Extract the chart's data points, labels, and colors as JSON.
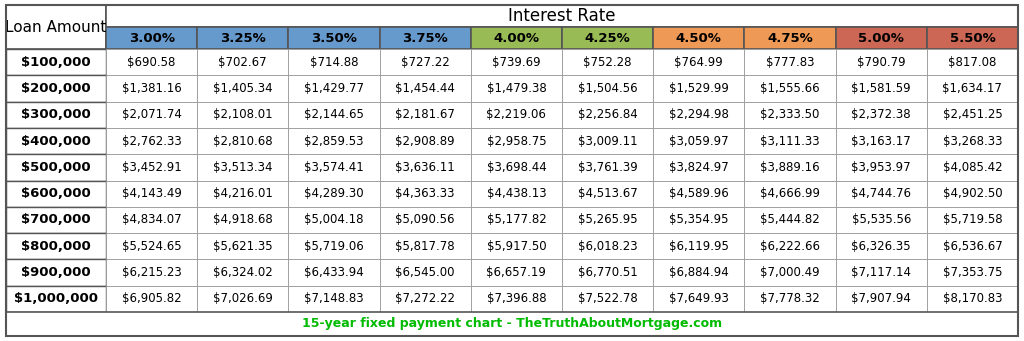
{
  "title": "Interest Rate",
  "footer": "15-year fixed payment chart - TheTruthAboutMortgage.com",
  "footer_color": "#00bb00",
  "col_header": [
    "3.00%",
    "3.25%",
    "3.50%",
    "3.75%",
    "4.00%",
    "4.25%",
    "4.50%",
    "4.75%",
    "5.00%",
    "5.50%"
  ],
  "col_header_colors": [
    "#6699cc",
    "#6699cc",
    "#6699cc",
    "#6699cc",
    "#99bb55",
    "#99bb55",
    "#ee9955",
    "#ee9955",
    "#cc6655",
    "#cc6655"
  ],
  "row_labels": [
    "$100,000",
    "$200,000",
    "$300,000",
    "$400,000",
    "$500,000",
    "$600,000",
    "$700,000",
    "$800,000",
    "$900,000",
    "$1,000,000"
  ],
  "data": [
    [
      "$690.58",
      "$702.67",
      "$714.88",
      "$727.22",
      "$739.69",
      "$752.28",
      "$764.99",
      "$777.83",
      "$790.79",
      "$817.08"
    ],
    [
      "$1,381.16",
      "$1,405.34",
      "$1,429.77",
      "$1,454.44",
      "$1,479.38",
      "$1,504.56",
      "$1,529.99",
      "$1,555.66",
      "$1,581.59",
      "$1,634.17"
    ],
    [
      "$2,071.74",
      "$2,108.01",
      "$2,144.65",
      "$2,181.67",
      "$2,219.06",
      "$2,256.84",
      "$2,294.98",
      "$2,333.50",
      "$2,372.38",
      "$2,451.25"
    ],
    [
      "$2,762.33",
      "$2,810.68",
      "$2,859.53",
      "$2,908.89",
      "$2,958.75",
      "$3,009.11",
      "$3,059.97",
      "$3,111.33",
      "$3,163.17",
      "$3,268.33"
    ],
    [
      "$3,452.91",
      "$3,513.34",
      "$3,574.41",
      "$3,636.11",
      "$3,698.44",
      "$3,761.39",
      "$3,824.97",
      "$3,889.16",
      "$3,953.97",
      "$4,085.42"
    ],
    [
      "$4,143.49",
      "$4,216.01",
      "$4,289.30",
      "$4,363.33",
      "$4,438.13",
      "$4,513.67",
      "$4,589.96",
      "$4,666.99",
      "$4,744.76",
      "$4,902.50"
    ],
    [
      "$4,834.07",
      "$4,918.68",
      "$5,004.18",
      "$5,090.56",
      "$5,177.82",
      "$5,265.95",
      "$5,354.95",
      "$5,444.82",
      "$5,535.56",
      "$5,719.58"
    ],
    [
      "$5,524.65",
      "$5,621.35",
      "$5,719.06",
      "$5,817.78",
      "$5,917.50",
      "$6,018.23",
      "$6,119.95",
      "$6,222.66",
      "$6,326.35",
      "$6,536.67"
    ],
    [
      "$6,215.23",
      "$6,324.02",
      "$6,433.94",
      "$6,545.00",
      "$6,657.19",
      "$6,770.51",
      "$6,884.94",
      "$7,000.49",
      "$7,117.14",
      "$7,353.75"
    ],
    [
      "$6,905.82",
      "$7,026.69",
      "$7,148.83",
      "$7,272.22",
      "$7,396.88",
      "$7,522.78",
      "$7,649.93",
      "$7,778.32",
      "$7,907.94",
      "$8,170.83"
    ]
  ],
  "bg_color": "#ffffff",
  "cell_border_color": "#999999",
  "outer_border_color": "#555555",
  "title_fontsize": 12,
  "header_fontsize": 9.5,
  "cell_fontsize": 8.5,
  "row_label_fontsize": 9.5,
  "loan_amount_label": "Loan Amount",
  "loan_amount_fontsize": 11
}
